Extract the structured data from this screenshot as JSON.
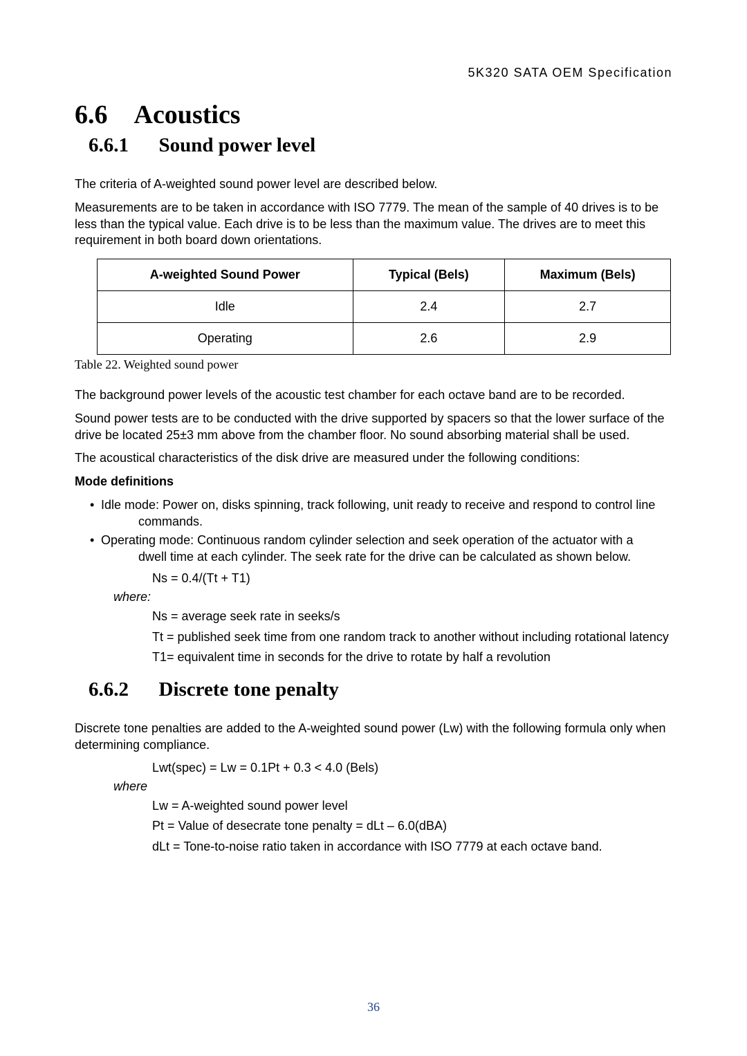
{
  "header": {
    "doc_title": "5K320 SATA OEM Specification"
  },
  "section": {
    "number": "6.6",
    "title": "Acoustics"
  },
  "sub1": {
    "number": "6.6.1",
    "title": "Sound power level",
    "intro": "The criteria of A-weighted sound power level are described below.",
    "measurement": "Measurements are to be taken in accordance with ISO 7779. The mean of the sample of 40 drives is to be less than the typical value. Each drive is to be less than the maximum value. The drives are to meet this requirement in both board down orientations."
  },
  "table": {
    "columns": [
      "A-weighted Sound Power",
      "Typical (Bels)",
      "Maximum (Bels)"
    ],
    "rows": [
      [
        "Idle",
        "2.4",
        "2.7"
      ],
      [
        "Operating",
        "2.6",
        "2.9"
      ]
    ],
    "col_widths": [
      "370px",
      "220px",
      "240px"
    ],
    "caption": "Table 22. Weighted sound power"
  },
  "after_table": {
    "p1": "The background power levels of the acoustic test chamber for each octave band are to be recorded.",
    "p2": "Sound power tests are to be conducted with the drive supported by spacers so that the lower surface of the drive be located 25±3 mm above from the chamber floor. No sound absorbing material shall be used.",
    "p3": "The acoustical characteristics of the disk drive are measured under the following conditions:",
    "mode_def_label": "Mode definitions"
  },
  "bullets": {
    "b1_lead": "Idle mode: Power on, disks spinning, track following, unit ready to receive and respond to control line",
    "b1_cont": "commands.",
    "b2_lead": "Operating mode: Continuous random cylinder selection and seek operation of the actuator with a",
    "b2_cont": "dwell time at each cylinder. The seek rate for the drive can be calculated as shown below."
  },
  "formula1": "Ns = 0.4/(Tt + T1)",
  "where1_label": "where:",
  "defs1": {
    "d1": "Ns = average seek rate in seeks/s",
    "d2": "Tt = published seek time from one random track to another without including rotational latency",
    "d3": "T1= equivalent time in seconds for the drive to rotate by half a revolution"
  },
  "sub2": {
    "number": "6.6.2",
    "title": "Discrete tone penalty",
    "intro": "Discrete tone penalties are added to the A-weighted sound power (Lw) with the following formula only when determining compliance."
  },
  "formula2": "Lwt(spec) = Lw = 0.1Pt + 0.3 < 4.0 (Bels)",
  "where2_label": "where",
  "defs2": {
    "d1": "Lw = A-weighted sound power level",
    "d2": "Pt = Value of desecrate tone penalty = dLt – 6.0(dBA)",
    "d3": "dLt = Tone-to-noise ratio taken in accordance with ISO 7779 at each octave band."
  },
  "page_number": "36",
  "colors": {
    "text": "#000000",
    "page_number": "#1a3f8a",
    "background": "#ffffff",
    "border": "#000000"
  },
  "typography": {
    "body_fontsize": 18,
    "h1_fontsize": 38,
    "h2_fontsize": 29,
    "serif_family": "Century Schoolbook",
    "sans_family": "Arial"
  }
}
